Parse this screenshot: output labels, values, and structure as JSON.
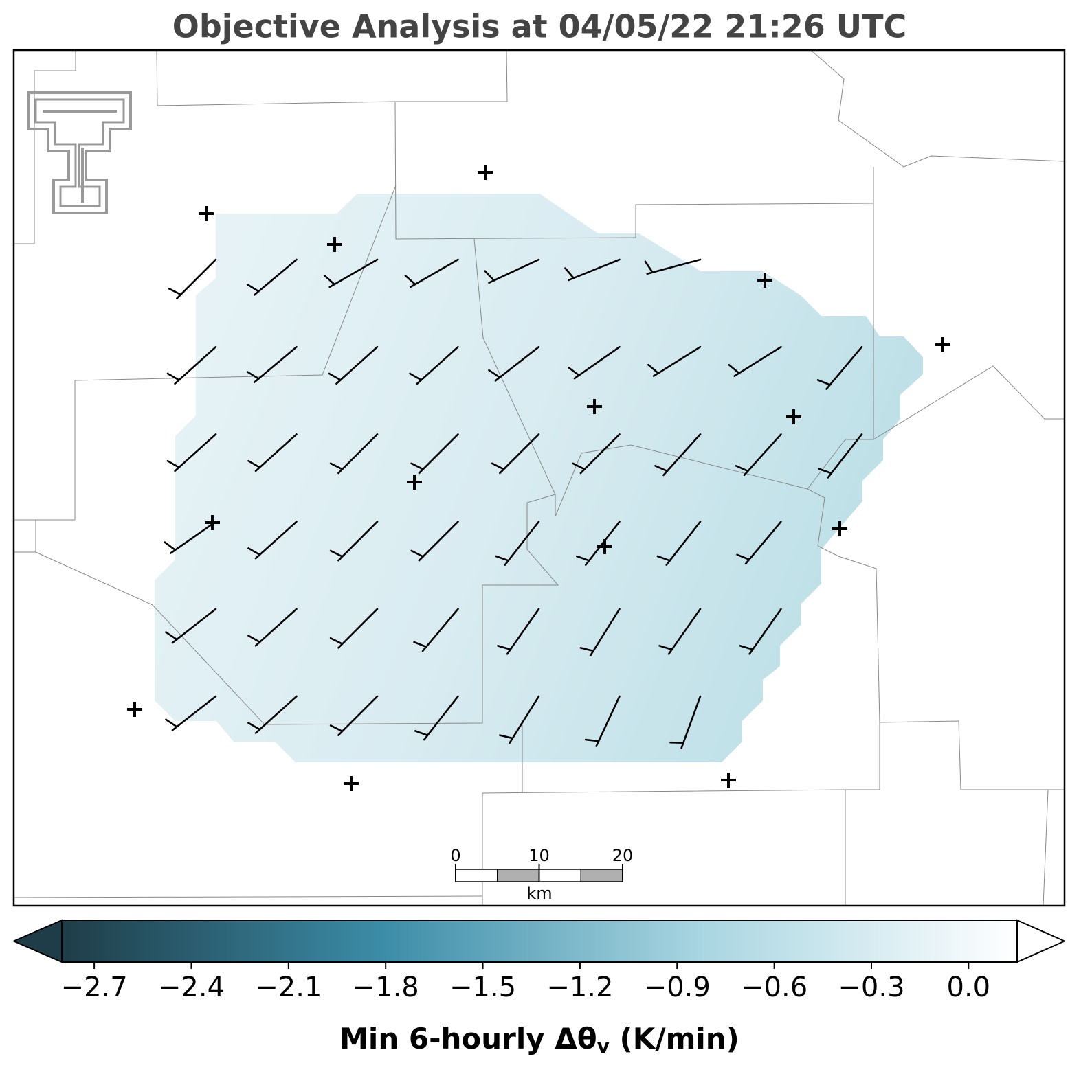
{
  "title": "Objective Analysis at 04/05/22 21:26 UTC",
  "colorbar": {
    "label_main": "Min 6-hourly Δθ",
    "label_subscript": "v",
    "label_units": "(K/min)",
    "lim": [
      -2.8,
      0.15
    ],
    "colors": [
      "#1f3d48",
      "#3b8ca7",
      "#a8d5e1",
      "#ffffff"
    ],
    "ticks": [
      {
        "value": -2.7,
        "label": "−2.7"
      },
      {
        "value": -2.4,
        "label": "−2.4"
      },
      {
        "value": -2.1,
        "label": "−2.1"
      },
      {
        "value": -1.8,
        "label": "−1.8"
      },
      {
        "value": -1.5,
        "label": "−1.5"
      },
      {
        "value": -1.2,
        "label": "−1.2"
      },
      {
        "value": -0.9,
        "label": "−0.9"
      },
      {
        "value": -0.6,
        "label": "−0.6"
      },
      {
        "value": -0.3,
        "label": "−0.3"
      },
      {
        "value": 0,
        "label": "0.0"
      }
    ]
  },
  "scale_bar": {
    "ticks": [
      0,
      10,
      20
    ],
    "unit": "km"
  }
}
